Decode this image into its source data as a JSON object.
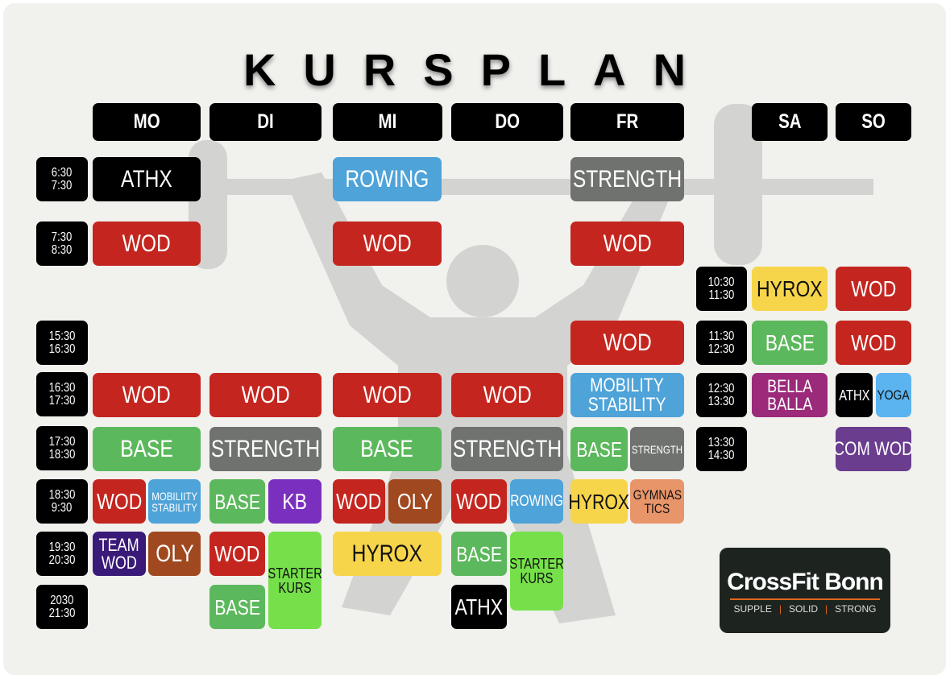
{
  "title": "KURSPLAN",
  "days": [
    "MO",
    "DI",
    "MI",
    "DO",
    "FR",
    "SA",
    "SO"
  ],
  "times": [
    [
      "6:30",
      "7:30"
    ],
    [
      "7:30",
      "8:30"
    ],
    [
      "15:30",
      "16:30"
    ],
    [
      "16:30",
      "17:30"
    ],
    [
      "17:30",
      "18:30"
    ],
    [
      "18:30",
      "9:30"
    ],
    [
      "19:30",
      "20:30"
    ],
    [
      "2030",
      "21:30"
    ]
  ],
  "weekend_times": [
    [
      "10:30",
      "11:30"
    ],
    [
      "11:30",
      "12:30"
    ],
    [
      "12:30",
      "13:30"
    ],
    [
      "13:30",
      "14:30"
    ]
  ],
  "classes": [
    "ATHX",
    "ROWING",
    "STRENGTH",
    "WOD",
    "WOD",
    "WOD",
    "HYROX",
    "WOD",
    "WOD",
    "BASE",
    "WOD",
    "WOD",
    "WOD",
    "WOD",
    "WOD",
    [
      "MOBILITY",
      "STABILITY"
    ],
    [
      "BELLA",
      "BALLA"
    ],
    "ATHX",
    "YOGA",
    "BASE",
    "STRENGTH",
    "BASE",
    "STRENGTH",
    "BASE",
    "STRENGTH",
    "COM WOD",
    "WOD",
    [
      "MOBILIITY",
      "STABILITY"
    ],
    "BASE",
    "KB",
    "WOD",
    "OLY",
    "WOD",
    "ROWING",
    "HYROX",
    [
      "GYMNAS",
      "TICS"
    ],
    [
      "TEAM",
      "WOD"
    ],
    "OLY",
    "WOD",
    [
      "STARTER",
      "KURS"
    ],
    "HYROX",
    "BASE",
    [
      "STARTER",
      "KURS"
    ],
    "BASE",
    "ATHX"
  ],
  "logo": {
    "brand": "CrossFit",
    "city": "Bonn",
    "tagline": [
      "SUPPLE",
      "SOLID",
      "STRONG"
    ]
  }
}
